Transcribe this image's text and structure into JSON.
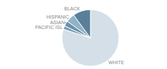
{
  "chart_data": {
    "type": "pie",
    "categories": [
      "WHITE",
      "PACIFIC ISL",
      "ASIAN",
      "HISPANIC",
      "BLACK"
    ],
    "values": [
      80,
      2,
      3,
      5,
      10
    ],
    "colors": [
      "#d4dfe8",
      "#7a9fb5",
      "#6b91aa",
      "#8fb3c8",
      "#5a7f98"
    ]
  }
}
